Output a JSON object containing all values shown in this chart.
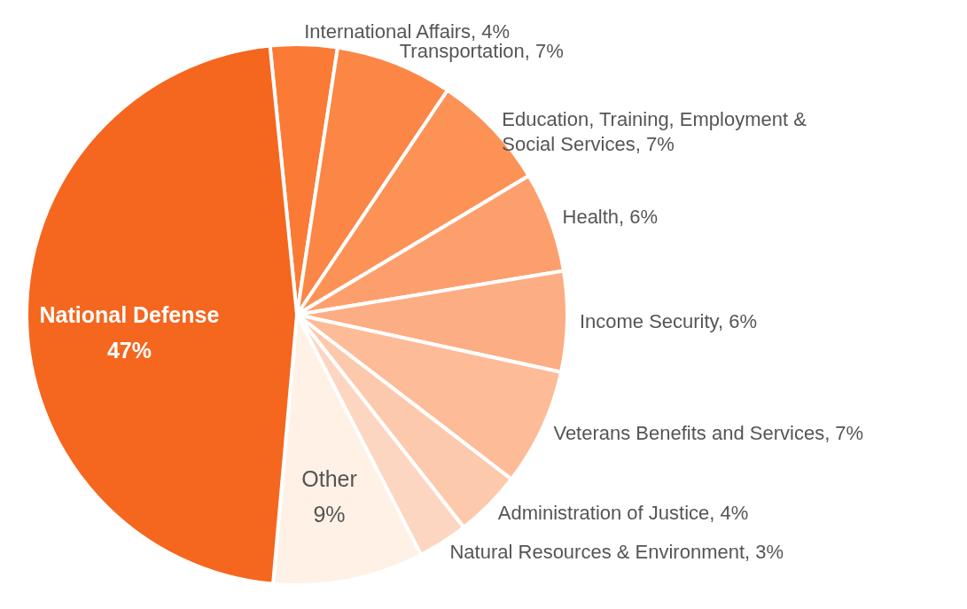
{
  "chart_data": {
    "type": "pie",
    "categories": [
      "International Affairs",
      "Transportation",
      "Education, Training, Employment & Social Services",
      "Health",
      "Income Security",
      "Veterans Benefits and Services",
      "Administration of Justice",
      "Natural Resources & Environment",
      "Other",
      "National Defense"
    ],
    "values": [
      4,
      7,
      7,
      6,
      6,
      7,
      4,
      3,
      9,
      47
    ],
    "colors": [
      "#fb7a36",
      "#fc8646",
      "#fd9257",
      "#fd9f6c",
      "#fdad83",
      "#fdbb98",
      "#fdc9ad",
      "#fdd6c1",
      "#fff1e6",
      "#f5661f"
    ],
    "value_labels": [
      "4%",
      "7%",
      "7%",
      "6%",
      "6%",
      "7%",
      "4%",
      "3%",
      "9%",
      "47%"
    ],
    "legend": false
  }
}
